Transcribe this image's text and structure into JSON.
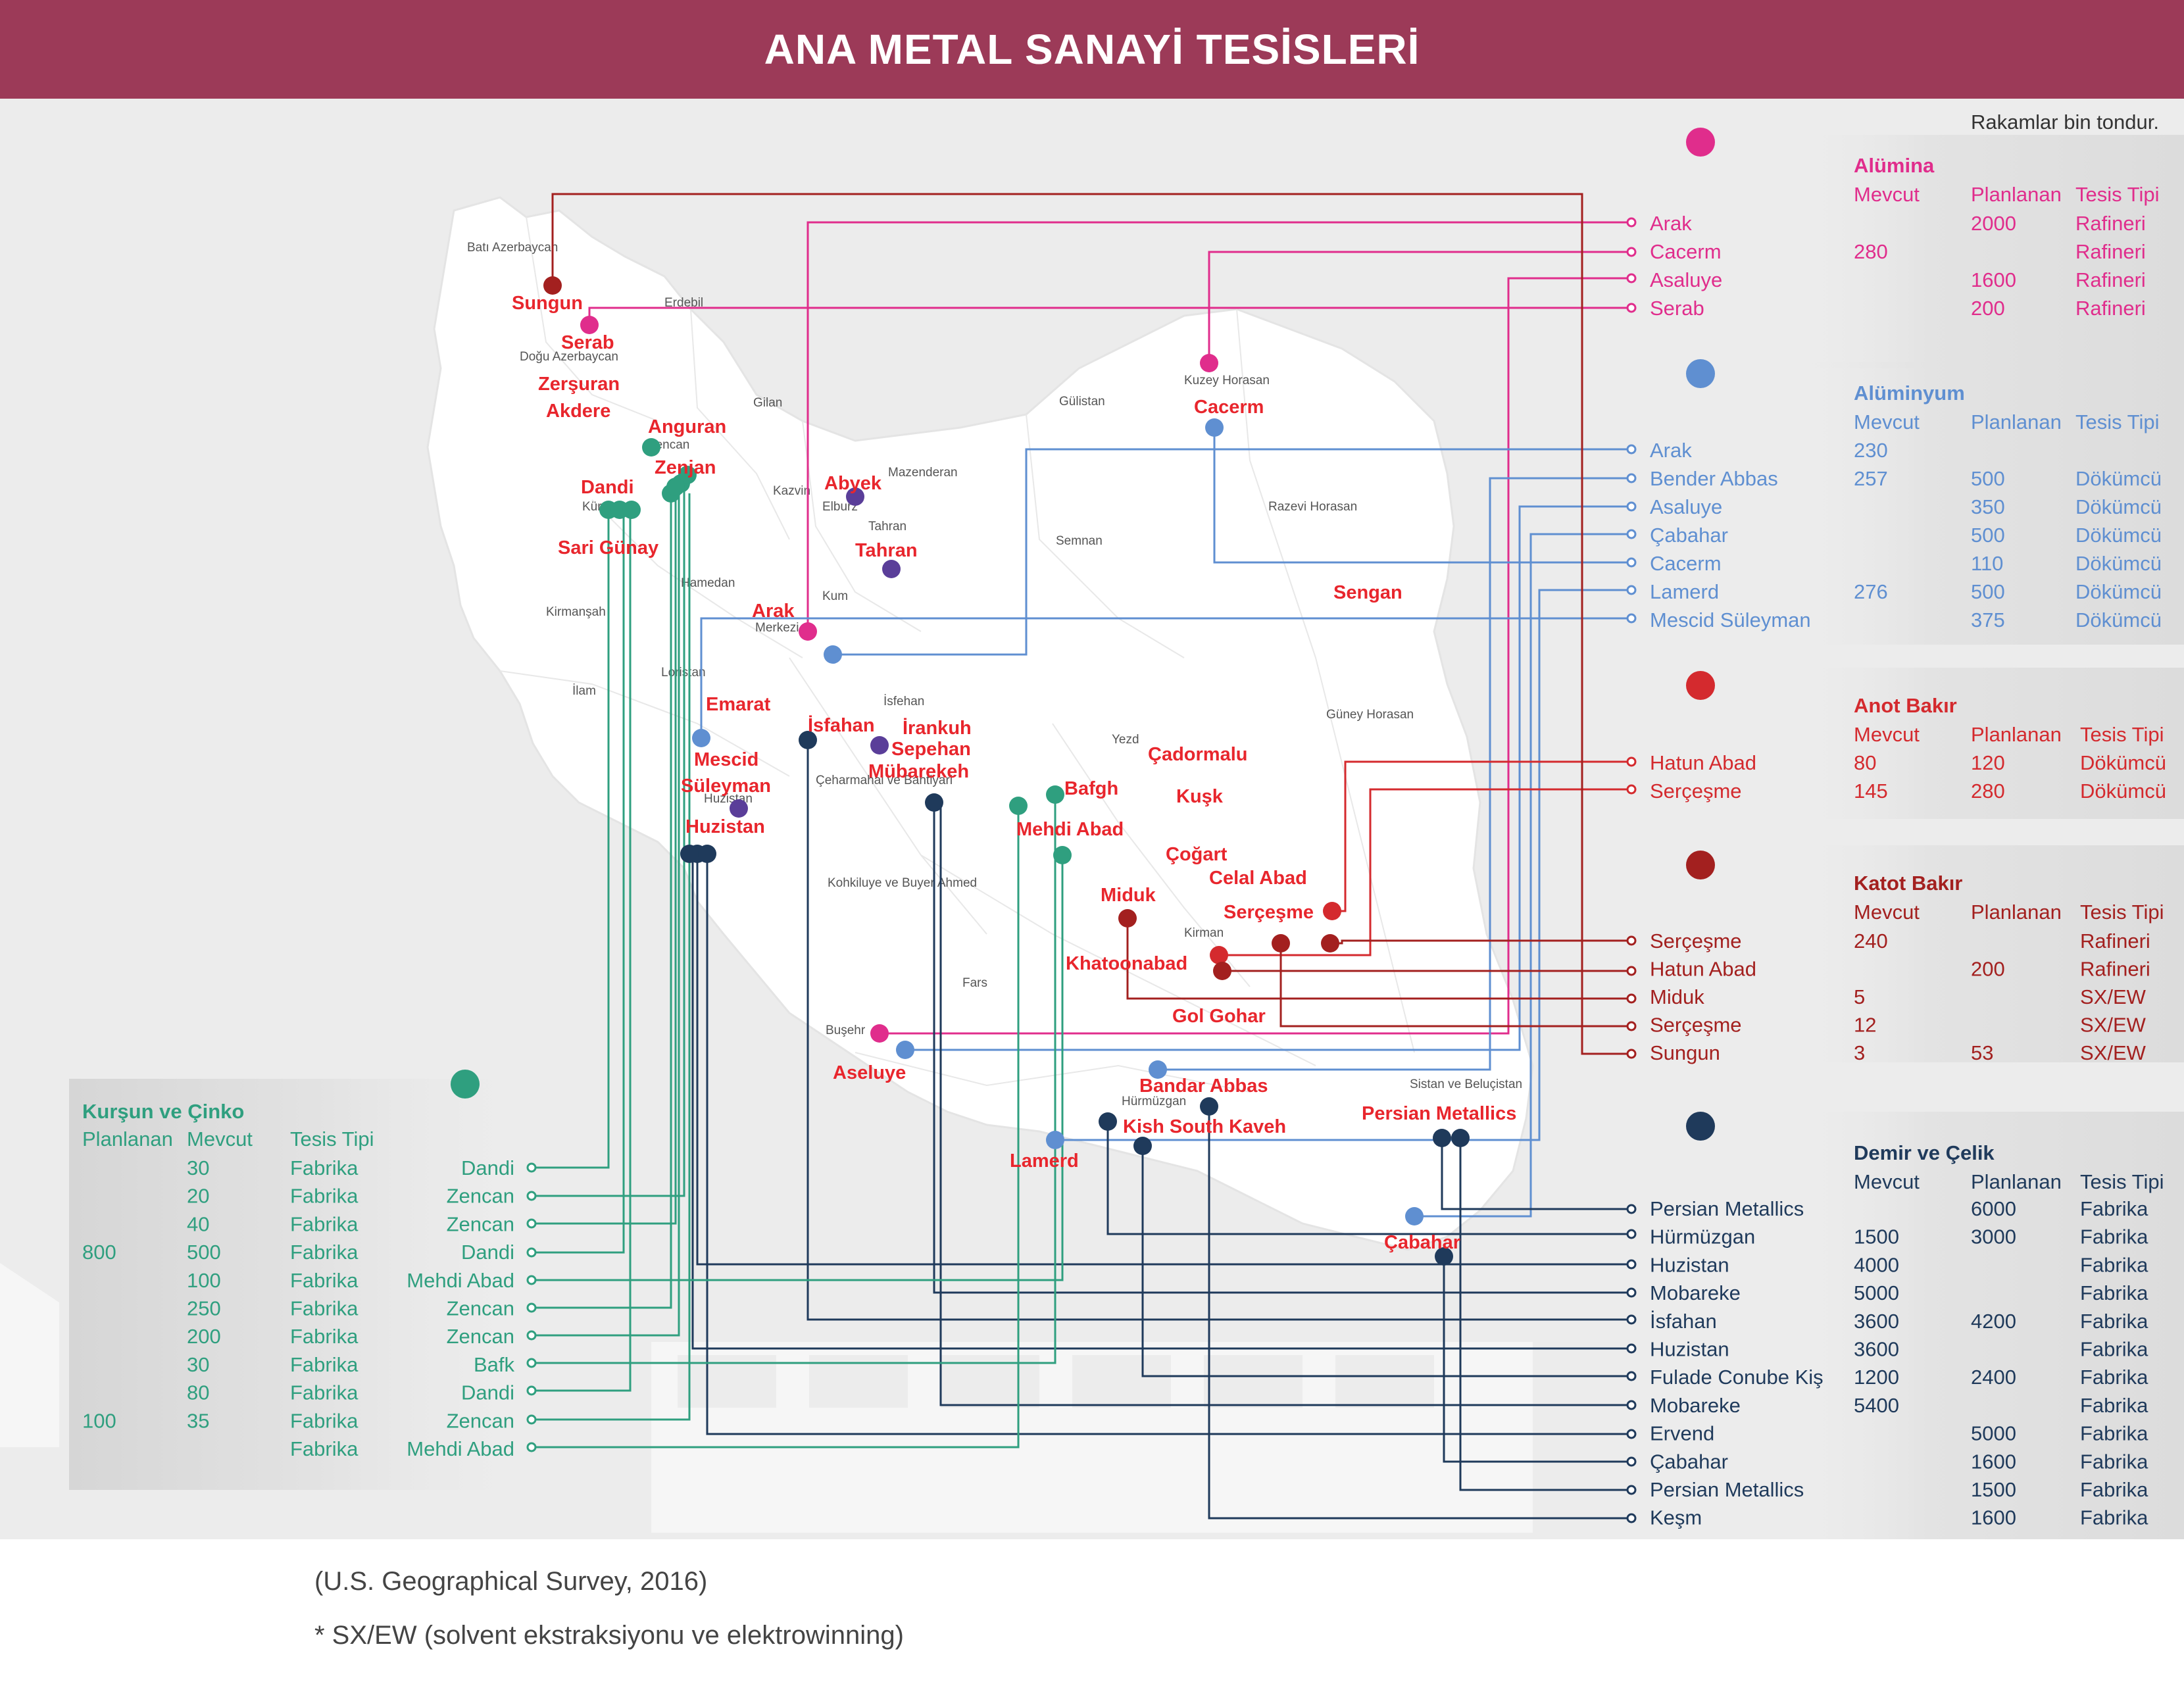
{
  "title": "ANA METAL SANAYİ TESİSLERİ",
  "unit_note": "Rakamlar bin tondur.",
  "source": "(U.S. Geographical Survey, 2016)",
  "footnote": "* SX/EW (solvent ekstraksiyonu ve elektrowinning)",
  "colors": {
    "alumina": "#e02d8c",
    "aluminyum": "#5f8fd1",
    "anot": "#d42a2e",
    "katot": "#a3201f",
    "demir": "#1f3a5b",
    "kursun": "#2f9f7f",
    "place": "#e8262d"
  },
  "regions": [
    "Batı Azerbaycan",
    "Erdebil",
    "Doğu Azerbaycan",
    "Gilan",
    "Zencan",
    "Kürdistan",
    "Kazvin",
    "Elburz",
    "Mazenderan",
    "Gülistan",
    "Kuzey Horasan",
    "Razevi Horasan",
    "Semnan",
    "Tahran",
    "Kum",
    "Hamedan",
    "Kirmanşah",
    "Merkezi",
    "Loristan",
    "İlam",
    "İsfehan",
    "Yezd",
    "Güney Horasan",
    "Huzistan",
    "Çeharmahal ve Bahtiyari",
    "Kohkiluye ve Buyer Ahmed",
    "Fars",
    "Kirman",
    "Buşehr",
    "Hürmüzgan",
    "Sistan ve Beluçistan"
  ],
  "places": [
    "Sungun",
    "Serab",
    "Zerşuran",
    "Akdere",
    "Anguran",
    "Zenjan",
    "Dandi",
    "Sari Günay",
    "Abyek",
    "Tahran",
    "Arak",
    "Cacerm",
    "Sengan",
    "Emarat",
    "İsfahan",
    "İrankuh",
    "Sepehan",
    "Mübarekeh",
    "Mescid",
    "Süleyman",
    "Huzistan",
    "Bafgh",
    "Mehdi Abad",
    "Çadormalu",
    "Kuşk",
    "Çoğart",
    "Celal Abad",
    "Serçeşme",
    "Miduk",
    "Khatoonabad",
    "Gol Gohar",
    "Aseluye",
    "Bandar Abbas",
    "Kish South Kaveh",
    "Lamerd",
    "Persian Metallics",
    "Çabahar"
  ],
  "alumina": {
    "title": "Alümina",
    "headers": [
      "Mevcut",
      "Planlanan",
      "Tesis Tipi"
    ],
    "rows": [
      {
        "name": "Arak",
        "mevcut": "",
        "planlanan": "2000",
        "tip": "Rafineri"
      },
      {
        "name": "Cacerm",
        "mevcut": "280",
        "planlanan": "",
        "tip": "Rafineri"
      },
      {
        "name": "Asaluye",
        "mevcut": "",
        "planlanan": "1600",
        "tip": "Rafineri"
      },
      {
        "name": "Serab",
        "mevcut": "",
        "planlanan": "200",
        "tip": "Rafineri"
      }
    ]
  },
  "aluminyum": {
    "title": "Alüminyum",
    "headers": [
      "Mevcut",
      "Planlanan",
      "Tesis Tipi"
    ],
    "rows": [
      {
        "name": "Arak",
        "mevcut": "230",
        "planlanan": "",
        "tip": ""
      },
      {
        "name": "Bender Abbas",
        "mevcut": "257",
        "planlanan": "500",
        "tip": "Dökümcü"
      },
      {
        "name": "Asaluye",
        "mevcut": "",
        "planlanan": "350",
        "tip": "Dökümcü"
      },
      {
        "name": "Çabahar",
        "mevcut": "",
        "planlanan": "500",
        "tip": "Dökümcü"
      },
      {
        "name": "Cacerm",
        "mevcut": "",
        "planlanan": "110",
        "tip": "Dökümcü"
      },
      {
        "name": "Lamerd",
        "mevcut": "276",
        "planlanan": "500",
        "tip": "Dökümcü"
      },
      {
        "name": "Mescid Süleyman",
        "mevcut": "",
        "planlanan": "375",
        "tip": "Dökümcü"
      }
    ]
  },
  "anot": {
    "title": "Anot Bakır",
    "headers": [
      "Mevcut",
      "Planlanan",
      "Tesis Tipi"
    ],
    "rows": [
      {
        "name": "Hatun Abad",
        "mevcut": "80",
        "planlanan": "120",
        "tip": "Dökümcü"
      },
      {
        "name": "Serçeşme",
        "mevcut": "145",
        "planlanan": "280",
        "tip": "Dökümcü"
      }
    ]
  },
  "katot": {
    "title": "Katot Bakır",
    "headers": [
      "Mevcut",
      "Planlanan",
      "Tesis Tipi"
    ],
    "rows": [
      {
        "name": "Serçeşme",
        "mevcut": "240",
        "planlanan": "",
        "tip": "Rafineri"
      },
      {
        "name": "Hatun Abad",
        "mevcut": "",
        "planlanan": "200",
        "tip": "Rafineri"
      },
      {
        "name": "Miduk",
        "mevcut": "5",
        "planlanan": "",
        "tip": "SX/EW"
      },
      {
        "name": "Serçeşme",
        "mevcut": "12",
        "planlanan": "",
        "tip": "SX/EW"
      },
      {
        "name": "Sungun",
        "mevcut": "3",
        "planlanan": "53",
        "tip": "SX/EW"
      }
    ]
  },
  "demir": {
    "title": "Demir ve Çelik",
    "headers": [
      "Mevcut",
      "Planlanan",
      "Tesis Tipi"
    ],
    "rows": [
      {
        "name": "Persian Metallics",
        "mevcut": "",
        "planlanan": "6000",
        "tip": "Fabrika"
      },
      {
        "name": "Hürmüzgan",
        "mevcut": "1500",
        "planlanan": "3000",
        "tip": "Fabrika"
      },
      {
        "name": "Huzistan",
        "mevcut": "4000",
        "planlanan": "",
        "tip": "Fabrika"
      },
      {
        "name": "Mobareke",
        "mevcut": "5000",
        "planlanan": "",
        "tip": "Fabrika"
      },
      {
        "name": "İsfahan",
        "mevcut": "3600",
        "planlanan": "4200",
        "tip": "Fabrika"
      },
      {
        "name": "Huzistan",
        "mevcut": "3600",
        "planlanan": "",
        "tip": "Fabrika"
      },
      {
        "name": "Fulade Conube Kiş",
        "mevcut": "1200",
        "planlanan": "2400",
        "tip": "Fabrika"
      },
      {
        "name": "Mobareke",
        "mevcut": "5400",
        "planlanan": "",
        "tip": "Fabrika"
      },
      {
        "name": "Ervend",
        "mevcut": "",
        "planlanan": "5000",
        "tip": "Fabrika"
      },
      {
        "name": "Çabahar",
        "mevcut": "",
        "planlanan": "1600",
        "tip": "Fabrika"
      },
      {
        "name": "Persian Metallics",
        "mevcut": "",
        "planlanan": "1500",
        "tip": "Fabrika"
      },
      {
        "name": "Keşm",
        "mevcut": "",
        "planlanan": "1600",
        "tip": "Fabrika"
      }
    ]
  },
  "kursun": {
    "title": "Kurşun ve Çinko",
    "headers": [
      "Planlanan",
      "Mevcut",
      "Tesis Tipi"
    ],
    "rows": [
      {
        "name": "Dandi",
        "planlanan": "",
        "mevcut": "30",
        "tip": "Fabrika"
      },
      {
        "name": "Zencan",
        "planlanan": "",
        "mevcut": "20",
        "tip": "Fabrika"
      },
      {
        "name": "Zencan",
        "planlanan": "",
        "mevcut": "40",
        "tip": "Fabrika"
      },
      {
        "name": "Dandi",
        "planlanan": "800",
        "mevcut": "500",
        "tip": "Fabrika"
      },
      {
        "name": "Mehdi Abad",
        "planlanan": "",
        "mevcut": "100",
        "tip": "Fabrika"
      },
      {
        "name": "Zencan",
        "planlanan": "",
        "mevcut": "250",
        "tip": "Fabrika"
      },
      {
        "name": "Zencan",
        "planlanan": "",
        "mevcut": "200",
        "tip": "Fabrika"
      },
      {
        "name": "Bafk",
        "planlanan": "",
        "mevcut": "30",
        "tip": "Fabrika"
      },
      {
        "name": "Dandi",
        "planlanan": "",
        "mevcut": "80",
        "tip": "Fabrika"
      },
      {
        "name": "Zencan",
        "planlanan": "100",
        "mevcut": "35",
        "tip": "Fabrika"
      },
      {
        "name": "Mehdi Abad",
        "planlanan": "",
        "mevcut": "",
        "tip": "Fabrika"
      }
    ]
  }
}
